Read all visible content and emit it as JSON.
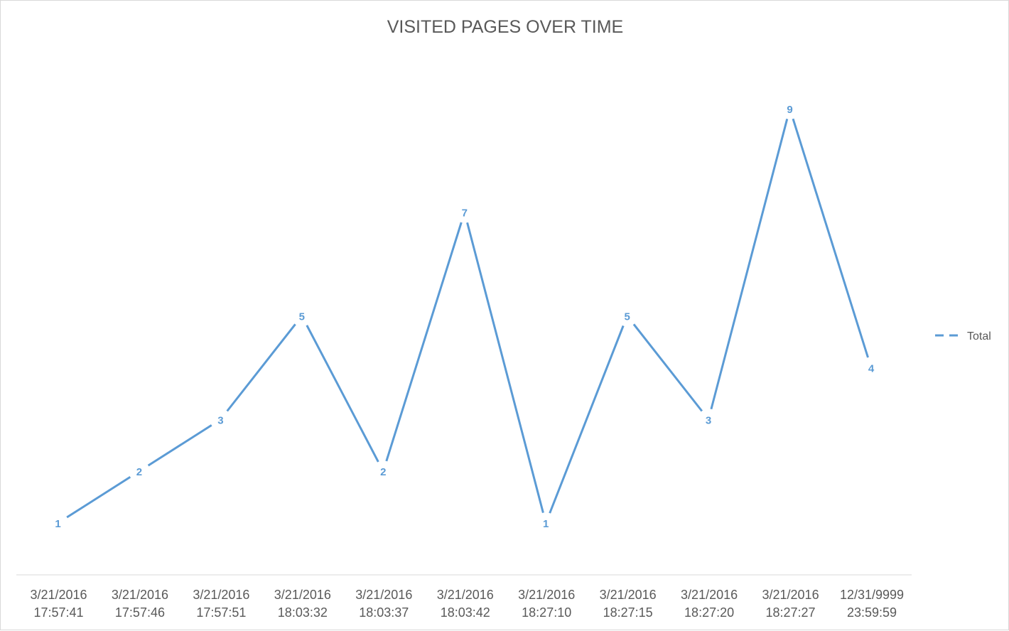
{
  "chart_data": {
    "type": "line",
    "title": "VISITED PAGES OVER TIME",
    "categories": [
      [
        "3/21/2016",
        "17:57:41"
      ],
      [
        "3/21/2016",
        "17:57:46"
      ],
      [
        "3/21/2016",
        "17:57:51"
      ],
      [
        "3/21/2016",
        "18:03:32"
      ],
      [
        "3/21/2016",
        "18:03:37"
      ],
      [
        "3/21/2016",
        "18:03:42"
      ],
      [
        "3/21/2016",
        "18:27:10"
      ],
      [
        "3/21/2016",
        "18:27:15"
      ],
      [
        "3/21/2016",
        "18:27:20"
      ],
      [
        "3/21/2016",
        "18:27:27"
      ],
      [
        "12/31/9999",
        "23:59:59"
      ]
    ],
    "series": [
      {
        "name": "Total",
        "values": [
          1,
          2,
          3,
          5,
          2,
          7,
          1,
          5,
          3,
          9,
          4
        ],
        "color": "#5b9bd5"
      }
    ],
    "data_labels": true,
    "ylim": [
      0,
      10
    ],
    "y_axis_visible": false,
    "grid": false,
    "legend": "right",
    "xlabel": "",
    "ylabel": ""
  }
}
